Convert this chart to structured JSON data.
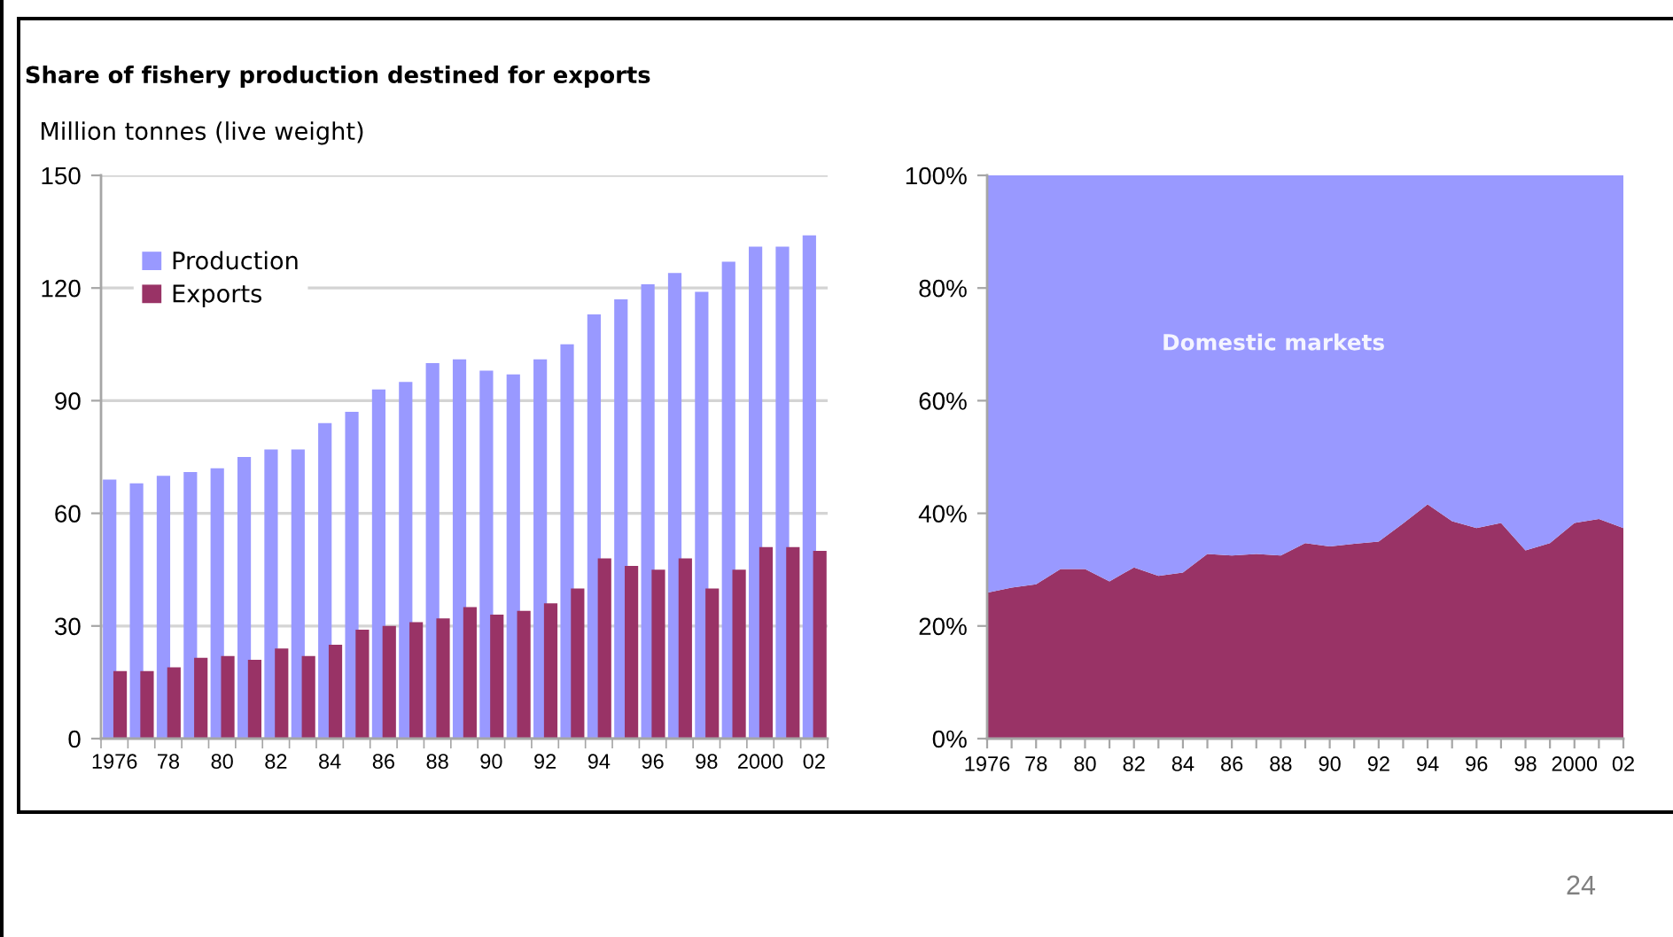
{
  "chart_data": [
    {
      "type": "bar",
      "title": "Share of fishery production destined for exports",
      "ylabel": "Million tonnes (live weight)",
      "categories": [
        "1976",
        null,
        "78",
        null,
        "80",
        null,
        "82",
        null,
        "84",
        null,
        "86",
        null,
        "88",
        null,
        "90",
        null,
        "92",
        null,
        "94",
        null,
        "96",
        null,
        "98",
        null,
        "2000",
        null,
        "02"
      ],
      "series": [
        {
          "name": "Production",
          "color": "#9999ff",
          "values": [
            69,
            68,
            70,
            71,
            72,
            75,
            77,
            77,
            84,
            87,
            93,
            95,
            100,
            101,
            98,
            97,
            101,
            105,
            113,
            117,
            121,
            124,
            119,
            127,
            131,
            131,
            134
          ]
        },
        {
          "name": "Exports",
          "color": "#993366",
          "values": [
            18,
            18,
            19,
            21.5,
            22,
            21,
            24,
            22,
            25,
            29,
            30,
            31,
            32,
            35,
            33,
            34,
            36,
            40,
            48,
            46,
            45,
            48,
            40,
            45,
            51,
            51,
            50
          ]
        }
      ],
      "ylim": [
        0,
        150
      ],
      "yticks": [
        0,
        30,
        60,
        90,
        120,
        150
      ],
      "grid": "y",
      "legend": "top left"
    },
    {
      "type": "area",
      "stacked": true,
      "categories": [
        "1976",
        null,
        "78",
        null,
        "80",
        null,
        "82",
        null,
        "84",
        null,
        "86",
        null,
        "88",
        null,
        "90",
        null,
        "92",
        null,
        "94",
        null,
        "96",
        null,
        "98",
        null,
        "2000",
        null,
        "02"
      ],
      "series": [
        {
          "color": "#993366",
          "values": [
            25.9,
            26.8,
            27.4,
            30.1,
            30.1,
            27.9,
            30.4,
            28.9,
            29.5,
            32.8,
            32.5,
            32.8,
            32.5,
            34.7,
            34.1,
            34.6,
            35.0,
            38.2,
            41.6,
            38.6,
            37.4,
            38.3,
            33.4,
            34.7,
            38.3,
            39.0,
            37.4
          ]
        },
        {
          "name": "Domestic markets",
          "color": "#9999ff",
          "values": [
            74.1,
            73.2,
            72.6,
            69.9,
            69.9,
            72.1,
            69.6,
            71.1,
            70.5,
            67.2,
            67.5,
            67.2,
            67.5,
            65.3,
            65.9,
            65.4,
            65.0,
            61.8,
            58.4,
            61.4,
            62.6,
            61.7,
            66.6,
            65.3,
            61.7,
            61.0,
            62.6
          ]
        }
      ],
      "ylim": [
        0,
        100
      ],
      "yticks": [
        {
          "value": 0,
          "label": "0%"
        },
        {
          "value": 20,
          "label": "20%"
        },
        {
          "value": 40,
          "label": "40%"
        },
        {
          "value": 60,
          "label": "60%"
        },
        {
          "value": 80,
          "label": "80%"
        },
        {
          "value": 100,
          "label": "100%"
        }
      ],
      "annotations": [
        "24"
      ]
    }
  ]
}
